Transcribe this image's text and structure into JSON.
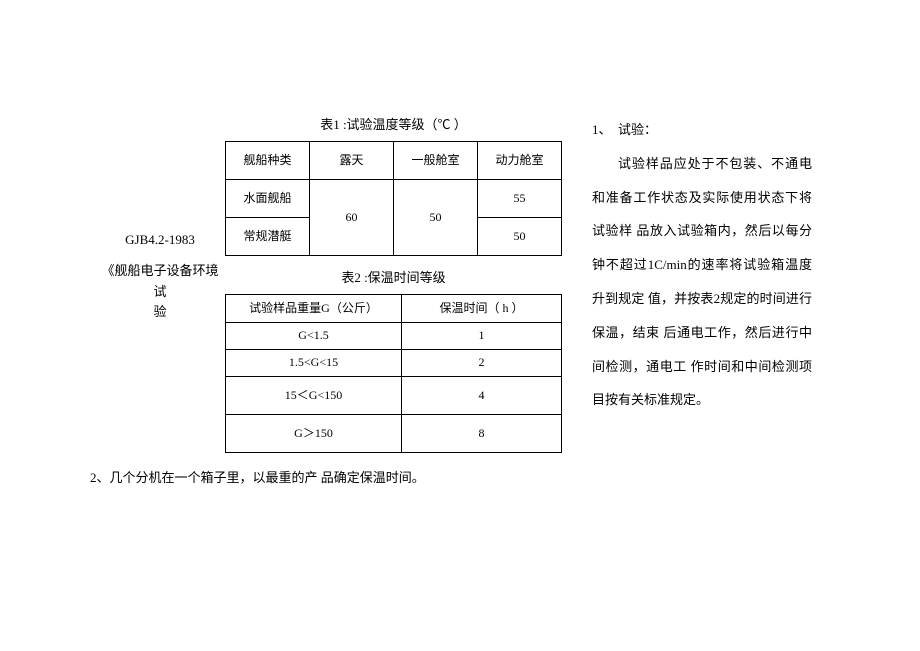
{
  "left": {
    "standard_code": "GJB4.2-1983",
    "standard_title_line1": "《舰船电子设备环境试",
    "standard_title_line2": "验"
  },
  "table1": {
    "title": "表1 :试验温度等级（℃ ）",
    "headers": {
      "h1": "舰船种类",
      "h2": "露天",
      "h3": "一般舱室",
      "h4": "动力舱室"
    },
    "rows": {
      "r1c1": "水面舰船",
      "r1c4": "55",
      "r2c1": "常规潜艇",
      "r2c4": "50",
      "merged_c2": "60",
      "merged_c3": "50"
    }
  },
  "table2": {
    "title": "表2 :保温时间等级",
    "headers": {
      "h1": "试验样品重量G（公斤）",
      "h2": "保温时间（ h ）"
    },
    "rows": {
      "r1a": "G<1.5",
      "r1b": "1",
      "r2a": "1.5<G<15",
      "r2b": "2",
      "r3a": "15＜G<150",
      "r3b": "4",
      "r4a": "G＞150",
      "r4b": "8"
    }
  },
  "right": {
    "heading": "1、　试验：",
    "body": "试验样品应处于不包装、不通电和准备工作状态及实际使用状态下将试验样 品放入试验箱内，然后以每分钟不超过1C/min的速率将试验箱温度升到规定 值，并按表2规定的时间进行保温，结束 后通电工作，然后进行中间检测，通电工 作时间和中间检测项目按有关标准规定。"
  },
  "bottom": {
    "note": "2、几个分机在一个箱子里，以最重的产 品确定保温时间。"
  }
}
